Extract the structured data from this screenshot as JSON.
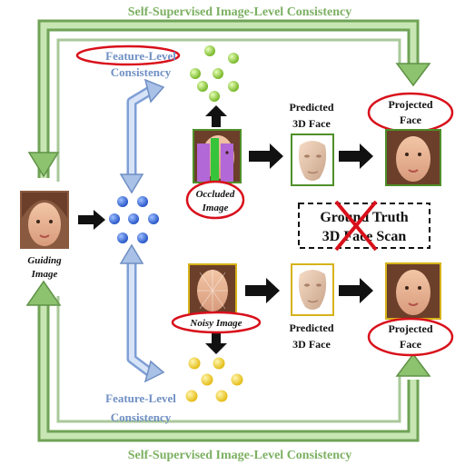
{
  "title_top": "Self-Supervised Image-Level Consistency",
  "title_bottom": "Self-Supervised Image-Level Consistency",
  "feature_level_top": {
    "line1": "Feature-Level",
    "line2": "Consistency"
  },
  "feature_level_bottom": {
    "line1": "Feature-Level",
    "line2": "Consistency"
  },
  "guiding_image": {
    "line1": "Guiding",
    "line2": "Image"
  },
  "occluded_image": {
    "line1": "Occluded",
    "line2": "Image"
  },
  "noisy_image": "Noisy Image",
  "predicted_top": {
    "line1": "Predicted",
    "line2": "3D Face"
  },
  "predicted_bottom": {
    "line1": "Predicted",
    "line2": "3D Face"
  },
  "projected_top": {
    "line1": "Projected",
    "line2": "Face"
  },
  "projected_bottom": {
    "line1": "Projected",
    "line2": "Face"
  },
  "ground_truth": {
    "line1": "Ground Truth",
    "line2": "3D Face Scan"
  },
  "colors": {
    "green_arrow": "#8dc26f",
    "blue_arrow": "#a9c1e6",
    "red_ellipse": "#d8101b",
    "blue_dot": "#2f63d8",
    "green_dot": "#8fd23a",
    "yellow_dot": "#f3d21a",
    "frame_green": "#4f8f2a",
    "frame_yellow": "#d6b21a"
  }
}
